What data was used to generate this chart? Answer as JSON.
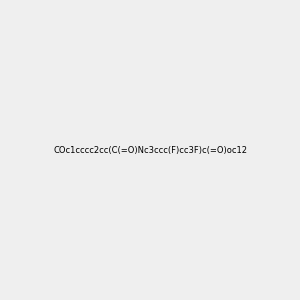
{
  "smiles": "COc1cccc2cc(C(=O)Nc3ccc(F)cc3F)c(=O)oc12",
  "title": "",
  "bg_color": "#efefef",
  "img_size": [
    300,
    300
  ],
  "atom_colors": {
    "O": "#ff0000",
    "N": "#0000ff",
    "F": "#ff00ff",
    "C": "#2f6e6e",
    "H": "#7a9a9a"
  }
}
